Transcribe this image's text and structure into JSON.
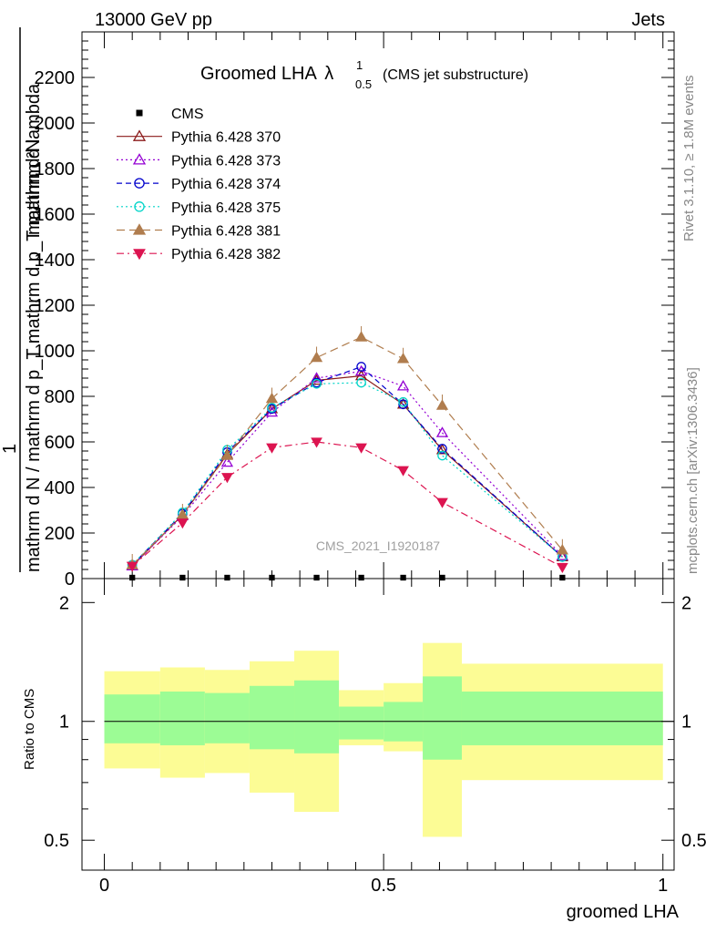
{
  "header": {
    "left": "13000 GeV pp",
    "right": "Jets"
  },
  "side": {
    "rivet": "Rivet 3.1.10, ≥ 1.8M events",
    "mcplots": "mcplots.cern.ch [arXiv:1306.3436]"
  },
  "chart_data": [
    {
      "type": "line",
      "title": "Groomed LHA",
      "title_symbol": "λ",
      "title_sup": "1",
      "title_sub": "0.5",
      "subtitle": "(CMS jet substructure)",
      "watermark": "CMS_2021_I1920187",
      "ylabel_line1": "mathrm d²N",
      "ylabel_numer": "1",
      "ylabel_denom": "mathrm d N / mathrm d p_T mathrm d p_T mathrm d lambda",
      "xlim": [
        -0.04,
        1.02
      ],
      "ylim": [
        0,
        2400
      ],
      "yticks": [
        0,
        200,
        400,
        600,
        800,
        1000,
        1200,
        1400,
        1600,
        1800,
        2000,
        2200
      ],
      "ytick_labels": [
        "0",
        "200",
        "400",
        "600",
        "800",
        "1000",
        "1200",
        "1400",
        "1600",
        "1800",
        "2000",
        "2200"
      ],
      "x": [
        0.05,
        0.14,
        0.22,
        0.3,
        0.38,
        0.46,
        0.535,
        0.605,
        0.82
      ],
      "series": [
        {
          "name": "CMS",
          "color": "#000000",
          "marker": "square",
          "dash": "none",
          "values": [
            0,
            0,
            0,
            0,
            0,
            0,
            0,
            0,
            0
          ]
        },
        {
          "name": "Pythia 6.428 370",
          "color": "#8b1a1a",
          "marker": "tri-up-open",
          "dash": "solid",
          "values": [
            55,
            280,
            545,
            745,
            870,
            890,
            765,
            565,
            95
          ]
        },
        {
          "name": "Pythia 6.428 373",
          "color": "#9400d3",
          "marker": "tri-up-open",
          "dash": "dot",
          "values": [
            55,
            275,
            510,
            730,
            880,
            910,
            845,
            640,
            100
          ]
        },
        {
          "name": "Pythia 6.428 374",
          "color": "#0000cc",
          "marker": "circle-open",
          "dash": "dash",
          "values": [
            60,
            285,
            555,
            745,
            860,
            930,
            765,
            570,
            95
          ]
        },
        {
          "name": "Pythia 6.428 375",
          "color": "#00d4c8",
          "marker": "circle-open",
          "dash": "dot",
          "values": [
            60,
            290,
            565,
            750,
            855,
            860,
            775,
            540,
            95
          ]
        },
        {
          "name": "Pythia 6.428 381",
          "color": "#b07d4e",
          "marker": "tri-up-filled",
          "dash": "longdash",
          "values": [
            60,
            280,
            540,
            790,
            970,
            1060,
            965,
            760,
            125
          ]
        },
        {
          "name": "Pythia 6.428 382",
          "color": "#dc1450",
          "marker": "tri-down-filled",
          "dash": "dashdot",
          "values": [
            55,
            245,
            445,
            575,
            600,
            575,
            475,
            335,
            50
          ]
        }
      ]
    },
    {
      "type": "area",
      "ylabel": "Ratio to CMS",
      "xlabel": "groomed LHA",
      "log_scale": true,
      "ylim": [
        0.42,
        2.3
      ],
      "yticks_major": [
        0.5,
        1,
        2
      ],
      "ytick_labels": [
        "0.5",
        "1",
        "2"
      ],
      "xticks_major": [
        0,
        0.5,
        1
      ],
      "xtick_labels": [
        "0",
        "0.5",
        "1"
      ],
      "bins": [
        {
          "x0": 0.0,
          "x1": 0.1,
          "inner": [
            0.88,
            1.17
          ],
          "outer": [
            0.76,
            1.34
          ]
        },
        {
          "x0": 0.1,
          "x1": 0.18,
          "inner": [
            0.87,
            1.19
          ],
          "outer": [
            0.72,
            1.37
          ]
        },
        {
          "x0": 0.18,
          "x1": 0.26,
          "inner": [
            0.88,
            1.18
          ],
          "outer": [
            0.74,
            1.35
          ]
        },
        {
          "x0": 0.26,
          "x1": 0.34,
          "inner": [
            0.85,
            1.23
          ],
          "outer": [
            0.66,
            1.42
          ]
        },
        {
          "x0": 0.34,
          "x1": 0.42,
          "inner": [
            0.83,
            1.27
          ],
          "outer": [
            0.59,
            1.51
          ]
        },
        {
          "x0": 0.42,
          "x1": 0.5,
          "inner": [
            0.9,
            1.09
          ],
          "outer": [
            0.87,
            1.2
          ]
        },
        {
          "x0": 0.5,
          "x1": 0.57,
          "inner": [
            0.89,
            1.12
          ],
          "outer": [
            0.84,
            1.25
          ]
        },
        {
          "x0": 0.57,
          "x1": 0.64,
          "inner": [
            0.8,
            1.3
          ],
          "outer": [
            0.51,
            1.58
          ]
        },
        {
          "x0": 0.64,
          "x1": 1.0,
          "inner": [
            0.87,
            1.19
          ],
          "outer": [
            0.71,
            1.4
          ]
        }
      ],
      "reference": 1,
      "colors": {
        "inner": "#9cfc95",
        "outer": "#fcfc95"
      }
    }
  ]
}
